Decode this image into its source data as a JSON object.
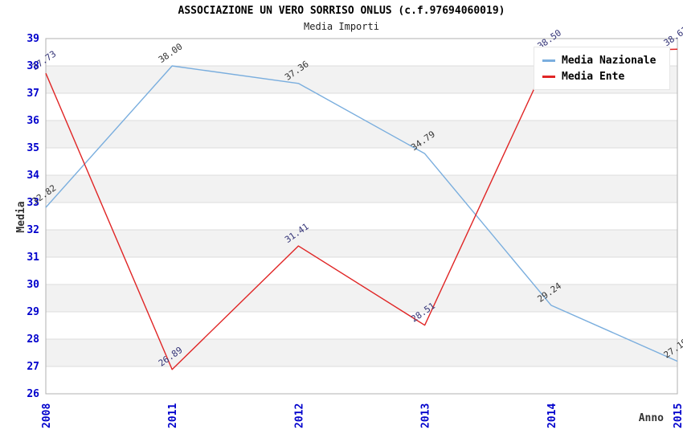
{
  "title": "ASSOCIAZIONE UN VERO SORRISO ONLUS (c.f.97694060019)",
  "subtitle": "Media Importi",
  "chart_data": {
    "type": "line",
    "x": [
      "2008",
      "2011",
      "2012",
      "2013",
      "2014",
      "2015"
    ],
    "xlabel": "Anno",
    "ylabel": "Media",
    "ylim": [
      26,
      39
    ],
    "ytick_step": 1,
    "grid": "horizontal-stripes",
    "legend_position": "top-right",
    "series": [
      {
        "name": "Media Nazionale",
        "color": "#7aaede",
        "label_color": "#333333",
        "values": [
          32.82,
          38.0,
          37.36,
          34.79,
          29.24,
          27.19
        ]
      },
      {
        "name": "Media Ente",
        "color": "#e02525",
        "label_color": "#333377",
        "values": [
          37.73,
          26.89,
          31.41,
          28.51,
          38.5,
          38.61
        ]
      }
    ],
    "colors": {
      "tick_label": "#0000cc",
      "axis_label": "#333333",
      "stripe": "#f2f2f2",
      "gridline": "#dcdcdc",
      "plot_border": "#b0b0b0",
      "plot_background": "#ffffff"
    }
  }
}
